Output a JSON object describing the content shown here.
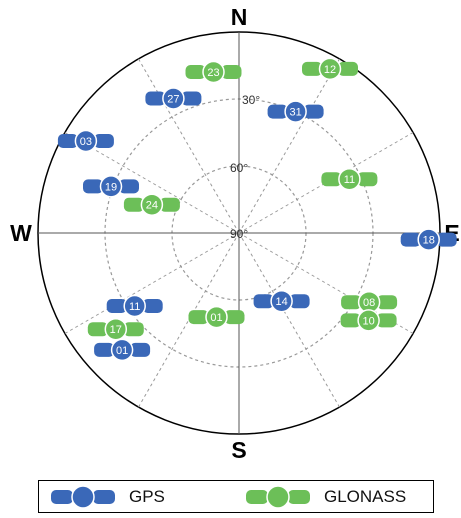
{
  "directions": {
    "north": "N",
    "south": "S",
    "east": "E",
    "west": "W"
  },
  "elevation_labels": [
    "30°",
    "60°",
    "90°"
  ],
  "colors": {
    "gps": "#3a68b8",
    "glonass": "#6cbf58",
    "circle": "#000000",
    "grid": "#999999"
  },
  "legend": [
    {
      "key": "gps",
      "label": "GPS"
    },
    {
      "key": "glonass",
      "label": "GLONASS"
    }
  ],
  "satellites": [
    {
      "system": "glonass",
      "prn": "23",
      "azimuth": 351,
      "elevation": 17
    },
    {
      "system": "glonass",
      "prn": "12",
      "azimuth": 29,
      "elevation": 6
    },
    {
      "system": "gps",
      "prn": "27",
      "azimuth": 334,
      "elevation": 23
    },
    {
      "system": "gps",
      "prn": "31",
      "azimuth": 25,
      "elevation": 30
    },
    {
      "system": "gps",
      "prn": "03",
      "azimuth": 301,
      "elevation": 10
    },
    {
      "system": "glonass",
      "prn": "11",
      "azimuth": 64,
      "elevation": 35
    },
    {
      "system": "gps",
      "prn": "19",
      "azimuth": 290,
      "elevation": 29
    },
    {
      "system": "glonass",
      "prn": "24",
      "azimuth": 288,
      "elevation": 49
    },
    {
      "system": "gps",
      "prn": "18",
      "azimuth": 92,
      "elevation": 5
    },
    {
      "system": "gps",
      "prn": "14",
      "azimuth": 148,
      "elevation": 54
    },
    {
      "system": "glonass",
      "prn": "08",
      "azimuth": 118,
      "elevation": 24
    },
    {
      "system": "glonass",
      "prn": "10",
      "azimuth": 124,
      "elevation": 20
    },
    {
      "system": "gps",
      "prn": "11",
      "azimuth": 235,
      "elevation": 33
    },
    {
      "system": "glonass",
      "prn": "01",
      "azimuth": 195,
      "elevation": 51
    },
    {
      "system": "glonass",
      "prn": "17",
      "azimuth": 232,
      "elevation": 20
    },
    {
      "system": "gps",
      "prn": "01",
      "azimuth": 225,
      "elevation": 16
    }
  ]
}
